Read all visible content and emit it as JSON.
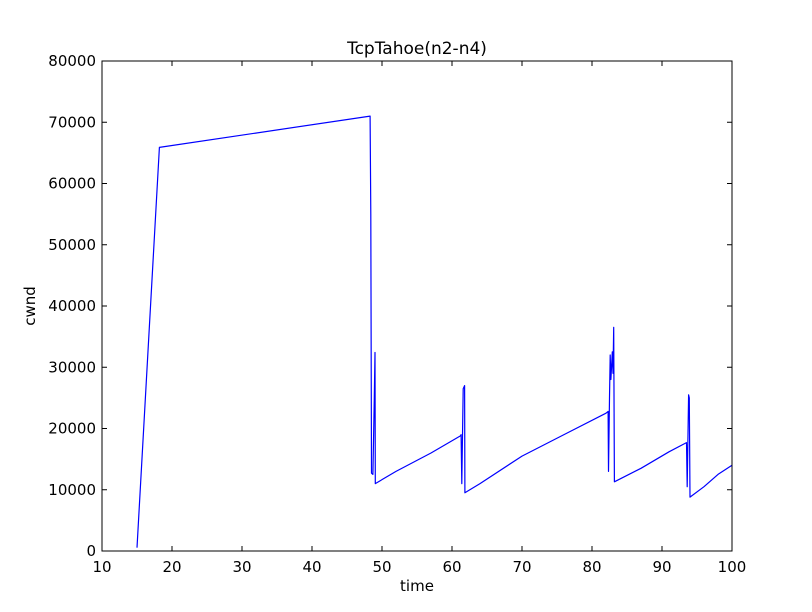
{
  "chart_data": {
    "type": "line",
    "title": "TcpTahoe(n2-n4)",
    "xlabel": "time",
    "ylabel": "cwnd",
    "xlim": [
      10,
      100
    ],
    "ylim": [
      0,
      80000
    ],
    "grid": false,
    "xticks": [
      10,
      20,
      30,
      40,
      50,
      60,
      70,
      80,
      90,
      100
    ],
    "yticks": [
      0,
      10000,
      20000,
      30000,
      40000,
      50000,
      60000,
      70000,
      80000
    ],
    "series": [
      {
        "name": "cwnd",
        "color": "#0000ff",
        "points": [
          [
            15.0,
            536
          ],
          [
            18.2,
            65900
          ],
          [
            48.3,
            71000
          ],
          [
            48.4,
            55000
          ],
          [
            48.5,
            12700
          ],
          [
            48.7,
            12500
          ],
          [
            48.9,
            25000
          ],
          [
            49.0,
            32400
          ],
          [
            49.05,
            11000
          ],
          [
            52.0,
            13000
          ],
          [
            57.0,
            16000
          ],
          [
            61.2,
            18800
          ],
          [
            61.3,
            19000
          ],
          [
            61.4,
            11000
          ],
          [
            61.6,
            26500
          ],
          [
            61.8,
            27000
          ],
          [
            61.85,
            9500
          ],
          [
            64.0,
            11000
          ],
          [
            70.0,
            15500
          ],
          [
            76.0,
            19000
          ],
          [
            82.0,
            22500
          ],
          [
            82.3,
            22800
          ],
          [
            82.35,
            13000
          ],
          [
            82.5,
            25000
          ],
          [
            82.6,
            32000
          ],
          [
            82.7,
            28000
          ],
          [
            82.9,
            32500
          ],
          [
            83.0,
            29000
          ],
          [
            83.1,
            36500
          ],
          [
            83.2,
            11300
          ],
          [
            87.0,
            13500
          ],
          [
            91.0,
            16200
          ],
          [
            93.5,
            17700
          ],
          [
            93.6,
            10500
          ],
          [
            93.8,
            25500
          ],
          [
            93.9,
            25000
          ],
          [
            94.0,
            8800
          ],
          [
            96.0,
            10500
          ],
          [
            98.0,
            12500
          ],
          [
            100.0,
            14000
          ]
        ]
      }
    ]
  }
}
